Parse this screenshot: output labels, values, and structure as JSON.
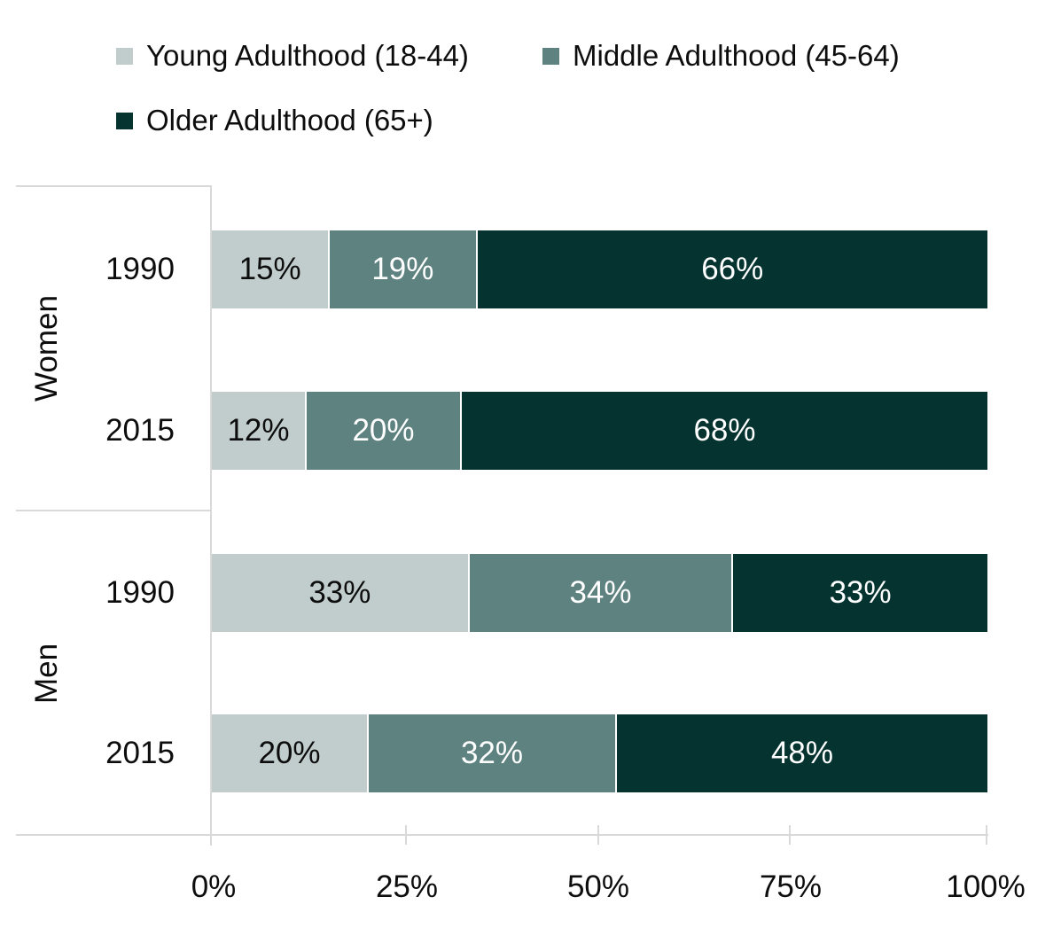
{
  "chart_data": {
    "type": "bar",
    "orientation": "horizontal",
    "stacked": true,
    "unit": "percent",
    "groups": [
      "Women",
      "Men"
    ],
    "categories": [
      "Women 1990",
      "Women 2015",
      "Men 1990",
      "Men 2015"
    ],
    "series": [
      {
        "name": "Young Adulthood (18-44)",
        "color": "#c1cdcc",
        "label_color": "#0d0d0d",
        "values": [
          15,
          12,
          33,
          20
        ]
      },
      {
        "name": "Middle Adulthood (45-64)",
        "color": "#5e8280",
        "label_color": "#ffffff",
        "values": [
          19,
          20,
          34,
          32
        ]
      },
      {
        "name": "Older Adulthood (65+)",
        "color": "#053330",
        "label_color": "#ffffff",
        "values": [
          66,
          68,
          33,
          48
        ]
      }
    ],
    "xlim": [
      0,
      100
    ],
    "x_ticks": [
      "0%",
      "25%",
      "50%",
      "75%",
      "100%"
    ],
    "legend_position": "top",
    "grid": false,
    "axis_color": "#d9d9d9"
  },
  "y_axis": {
    "groups": [
      "Women",
      "Men"
    ]
  },
  "rows": [
    {
      "group": "Women",
      "year": "1990",
      "labels": [
        "15%",
        "19%",
        "66%"
      ]
    },
    {
      "group": "Women",
      "year": "2015",
      "labels": [
        "12%",
        "20%",
        "68%"
      ]
    },
    {
      "group": "Men",
      "year": "1990",
      "labels": [
        "33%",
        "34%",
        "33%"
      ]
    },
    {
      "group": "Men",
      "year": "2015",
      "labels": [
        "20%",
        "32%",
        "48%"
      ]
    }
  ]
}
